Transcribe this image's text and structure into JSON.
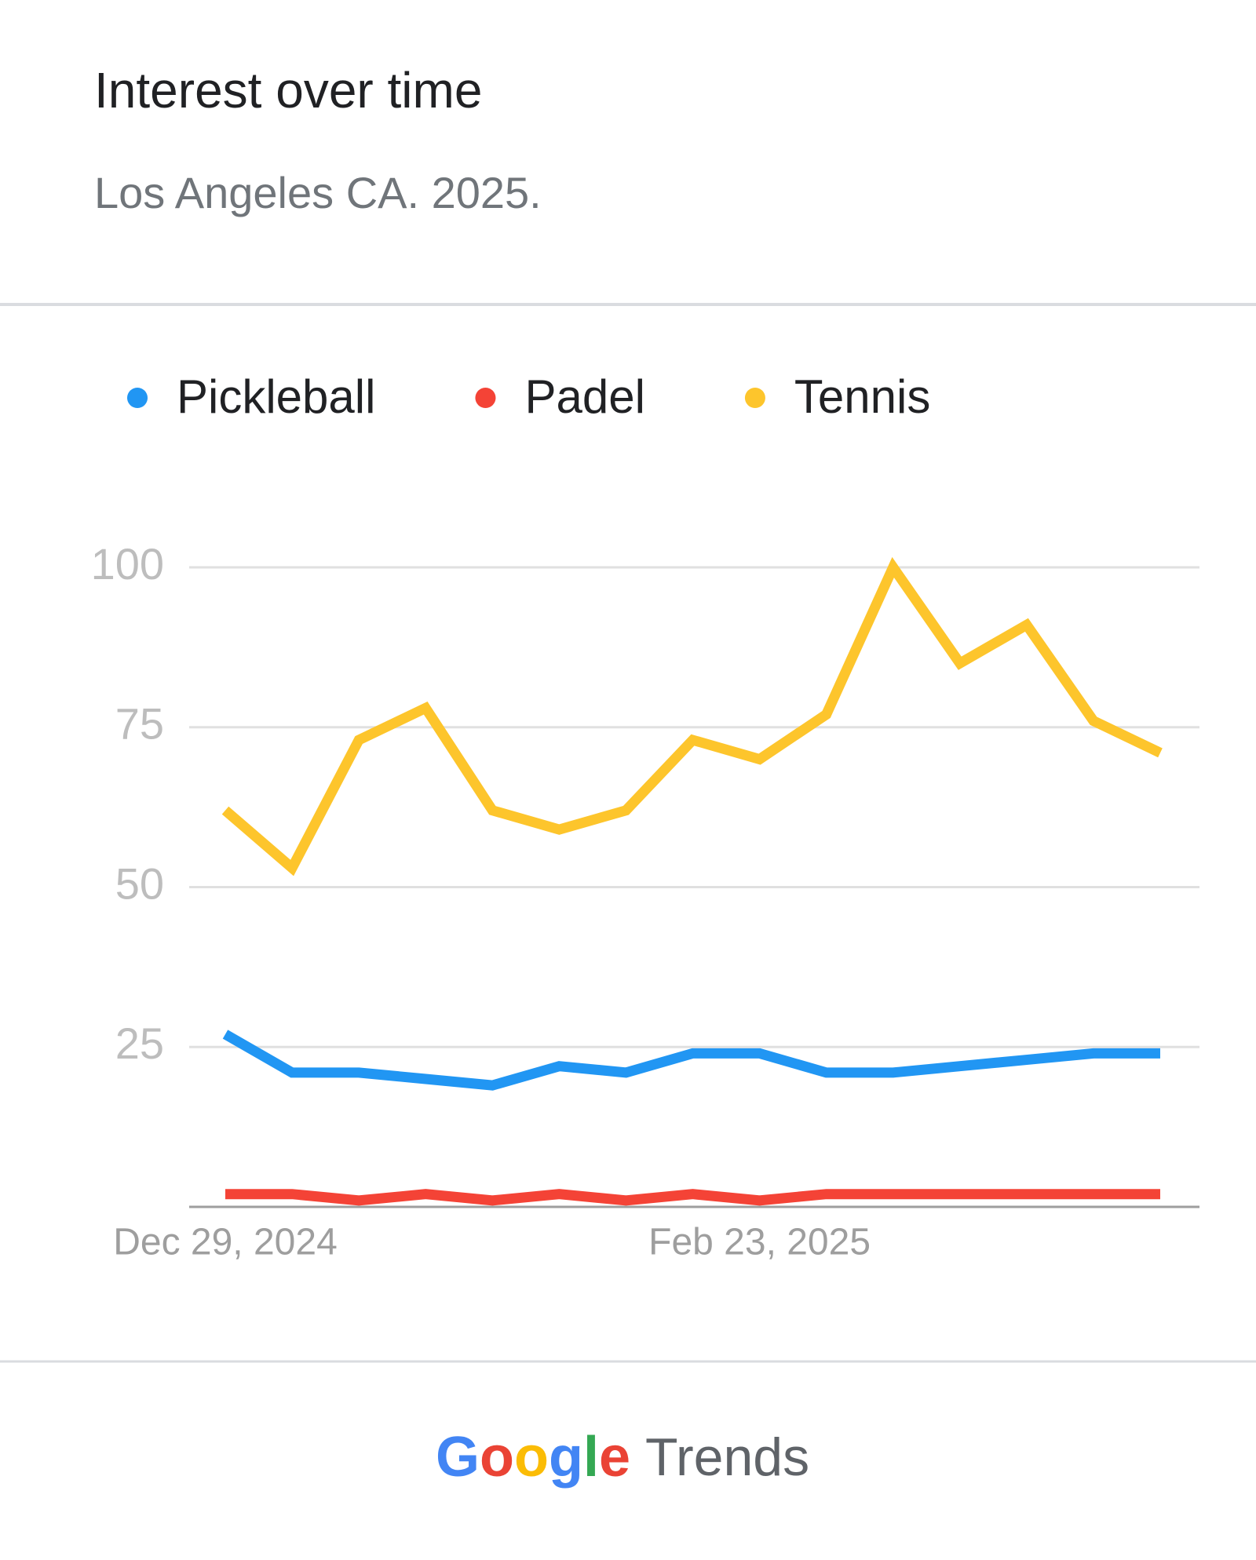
{
  "chart_data": {
    "type": "line",
    "title": "Interest over time",
    "subtitle": "Los Angeles CA. 2025.",
    "categories": [
      "Dec 29, 2024",
      null,
      null,
      null,
      null,
      null,
      null,
      null,
      "Feb 23, 2025",
      null,
      null,
      null,
      null,
      null,
      null
    ],
    "series": [
      {
        "name": "Pickleball",
        "color": "#2196f3",
        "values": [
          27,
          21,
          21,
          20,
          19,
          22,
          21,
          24,
          24,
          21,
          21,
          22,
          23,
          24,
          24
        ]
      },
      {
        "name": "Padel",
        "color": "#f44336",
        "values": [
          2,
          2,
          1,
          2,
          1,
          2,
          1,
          2,
          1,
          2,
          2,
          2,
          2,
          2,
          2
        ]
      },
      {
        "name": "Tennis",
        "color": "#fdc52c",
        "values": [
          62,
          53,
          73,
          78,
          62,
          59,
          62,
          73,
          70,
          77,
          100,
          85,
          91,
          76,
          71
        ]
      }
    ],
    "ylim": [
      0,
      100
    ],
    "yticks": [
      25,
      50,
      75,
      100
    ],
    "grid": true
  },
  "footer": {
    "brand": "Google",
    "product": "Trends"
  }
}
